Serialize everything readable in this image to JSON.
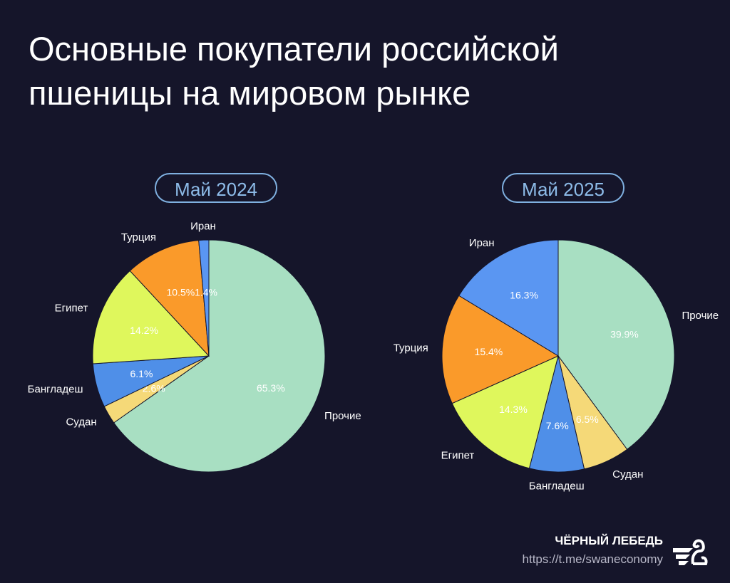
{
  "title_line1": "Основные покупатели российской",
  "title_line2": "пшеницы на мировом рынке",
  "footer": {
    "brand": "ЧЁРНЫЙ ЛЕБЕДЬ",
    "url": "https://t.me/swaneconomy",
    "logo_icon": "swan-logo-icon"
  },
  "chart_data": [
    {
      "type": "pie",
      "title": "Май 2024",
      "categories": [
        "Прочие",
        "Судан",
        "Бангладеш",
        "Египет",
        "Турция",
        "Иран"
      ],
      "values": [
        65.3,
        2.6,
        6.1,
        14.2,
        10.5,
        1.4
      ],
      "labels": [
        "65.3%",
        "2.6%",
        "6.1%",
        "14.2%",
        "10.5%",
        "1.4%"
      ],
      "colors": [
        "#a8dfc2",
        "#f5d978",
        "#4f8fe8",
        "#dff75c",
        "#fa9a2a",
        "#5a96f2"
      ],
      "start": "top",
      "direction": "clockwise"
    },
    {
      "type": "pie",
      "title": "Май 2025",
      "categories": [
        "Прочие",
        "Судан",
        "Бангладеш",
        "Египет",
        "Турция",
        "Иран"
      ],
      "values": [
        39.9,
        6.5,
        7.6,
        14.3,
        15.4,
        16.3
      ],
      "labels": [
        "39.9%",
        "6.5%",
        "7.6%",
        "14.3%",
        "15.4%",
        "16.3%"
      ],
      "colors": [
        "#a8dfc2",
        "#f5d978",
        "#4f8fe8",
        "#dff75c",
        "#fa9a2a",
        "#5a96f2"
      ],
      "start": "top",
      "direction": "clockwise"
    }
  ]
}
